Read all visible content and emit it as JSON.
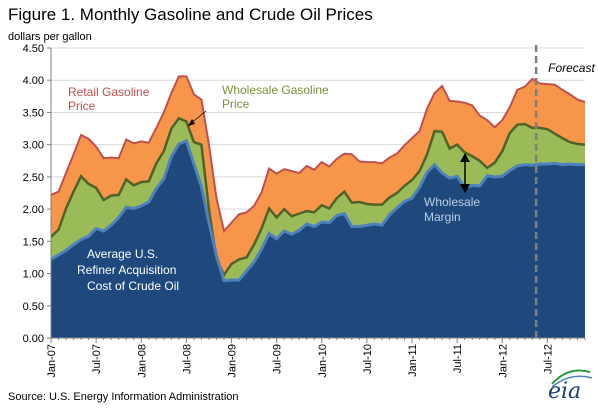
{
  "figure_title": "Figure 1.  Monthly Gasoline and Crude Oil Prices",
  "source_text": "Source:  U.S. Energy Information Administration",
  "logo_text": "eia",
  "colors": {
    "retail_margin_fill": "#f7964a",
    "retail_line": "#c0504d",
    "wholesale_margin_fill": "#9bbb59",
    "wholesale_line": "#4f6228",
    "crude_fill": "#1f497d",
    "crude_line": "#4f81bd",
    "forecast_line": "#7f7f7f",
    "retail_label": "#c0504d",
    "wholesale_label": "#77933c",
    "crude_label": "#ffffff",
    "margin_label": "#b9cde5"
  },
  "chart_data": {
    "type": "area",
    "ylabel": "dollars per gallon",
    "ylim": [
      0,
      4.5
    ],
    "yticks": [
      "0.00",
      "0.50",
      "1.00",
      "1.50",
      "2.00",
      "2.50",
      "3.00",
      "3.50",
      "4.00",
      "4.50"
    ],
    "xlim": [
      "2007-01",
      "2012-12"
    ],
    "xticks": [
      "Jan-07",
      "Jul-07",
      "Jan-08",
      "Jul-08",
      "Jan-09",
      "Jul-09",
      "Jan-10",
      "Jul-10",
      "Jan-11",
      "Jul-11",
      "Jan-12",
      "Jul-12"
    ],
    "months": [
      "2007-01",
      "2007-02",
      "2007-03",
      "2007-04",
      "2007-05",
      "2007-06",
      "2007-07",
      "2007-08",
      "2007-09",
      "2007-10",
      "2007-11",
      "2007-12",
      "2008-01",
      "2008-02",
      "2008-03",
      "2008-04",
      "2008-05",
      "2008-06",
      "2008-07",
      "2008-08",
      "2008-09",
      "2008-10",
      "2008-11",
      "2008-12",
      "2009-01",
      "2009-02",
      "2009-03",
      "2009-04",
      "2009-05",
      "2009-06",
      "2009-07",
      "2009-08",
      "2009-09",
      "2009-10",
      "2009-11",
      "2009-12",
      "2010-01",
      "2010-02",
      "2010-03",
      "2010-04",
      "2010-05",
      "2010-06",
      "2010-07",
      "2010-08",
      "2010-09",
      "2010-10",
      "2010-11",
      "2010-12",
      "2011-01",
      "2011-02",
      "2011-03",
      "2011-04",
      "2011-05",
      "2011-06",
      "2011-07",
      "2011-08",
      "2011-09",
      "2011-10",
      "2011-11",
      "2011-12",
      "2012-01",
      "2012-02",
      "2012-03",
      "2012-04",
      "2012-05",
      "2012-06",
      "2012-07",
      "2012-08",
      "2012-09",
      "2012-10",
      "2012-11",
      "2012-12"
    ],
    "forecast_start": "2012-06",
    "forecast_label": "Forecast",
    "series": [
      {
        "name": "Retail Gasoline Price",
        "values": [
          2.22,
          2.27,
          2.56,
          2.85,
          3.15,
          3.09,
          2.97,
          2.79,
          2.8,
          2.79,
          3.08,
          3.02,
          3.05,
          3.03,
          3.26,
          3.5,
          3.8,
          4.06,
          4.06,
          3.78,
          3.7,
          3.0,
          2.17,
          1.66,
          1.79,
          1.92,
          1.95,
          2.05,
          2.26,
          2.63,
          2.55,
          2.62,
          2.59,
          2.56,
          2.67,
          2.61,
          2.73,
          2.66,
          2.78,
          2.86,
          2.85,
          2.74,
          2.73,
          2.73,
          2.71,
          2.8,
          2.86,
          2.99,
          3.1,
          3.21,
          3.56,
          3.8,
          3.91,
          3.68,
          3.67,
          3.65,
          3.61,
          3.45,
          3.38,
          3.27,
          3.38,
          3.58,
          3.85,
          3.9,
          4.02,
          3.95,
          3.94,
          3.93,
          3.85,
          3.78,
          3.7,
          3.66
        ]
      },
      {
        "name": "Wholesale Gasoline Price",
        "values": [
          1.57,
          1.68,
          2.01,
          2.27,
          2.51,
          2.39,
          2.33,
          2.14,
          2.21,
          2.22,
          2.46,
          2.37,
          2.42,
          2.43,
          2.71,
          2.9,
          3.25,
          3.41,
          3.36,
          3.04,
          3.0,
          2.0,
          1.22,
          0.98,
          1.15,
          1.22,
          1.25,
          1.45,
          1.7,
          2.01,
          1.87,
          2.0,
          1.89,
          1.93,
          1.97,
          1.95,
          2.06,
          2.01,
          2.17,
          2.27,
          2.1,
          2.11,
          2.08,
          2.07,
          2.07,
          2.18,
          2.25,
          2.36,
          2.45,
          2.59,
          2.85,
          3.21,
          3.2,
          2.94,
          3.0,
          2.88,
          2.82,
          2.75,
          2.64,
          2.72,
          2.9,
          3.18,
          3.31,
          3.32,
          3.26,
          3.26,
          3.24,
          3.17,
          3.1,
          3.04,
          3.01,
          3.0
        ]
      },
      {
        "name": "Average U.S. Refiner Acquisition Cost of Crude Oil",
        "values": [
          1.22,
          1.29,
          1.36,
          1.45,
          1.53,
          1.58,
          1.7,
          1.66,
          1.75,
          1.87,
          2.03,
          2.01,
          2.05,
          2.11,
          2.32,
          2.47,
          2.81,
          3.01,
          3.06,
          2.7,
          2.35,
          1.79,
          1.28,
          0.89,
          0.9,
          0.9,
          1.04,
          1.18,
          1.38,
          1.62,
          1.54,
          1.66,
          1.61,
          1.67,
          1.77,
          1.73,
          1.8,
          1.79,
          1.9,
          1.93,
          1.73,
          1.73,
          1.75,
          1.77,
          1.75,
          1.91,
          2.02,
          2.12,
          2.17,
          2.34,
          2.57,
          2.69,
          2.56,
          2.48,
          2.51,
          2.33,
          2.37,
          2.36,
          2.52,
          2.5,
          2.51,
          2.6,
          2.67,
          2.69,
          2.68,
          2.7,
          2.7,
          2.71,
          2.69,
          2.7,
          2.69,
          2.69
        ]
      }
    ],
    "annotations": [
      "Retail Gasoline Price",
      "Wholesale Gasoline Price",
      "Average U.S. Refiner Acquisition Cost of Crude Oil",
      "Wholesale Margin"
    ]
  }
}
